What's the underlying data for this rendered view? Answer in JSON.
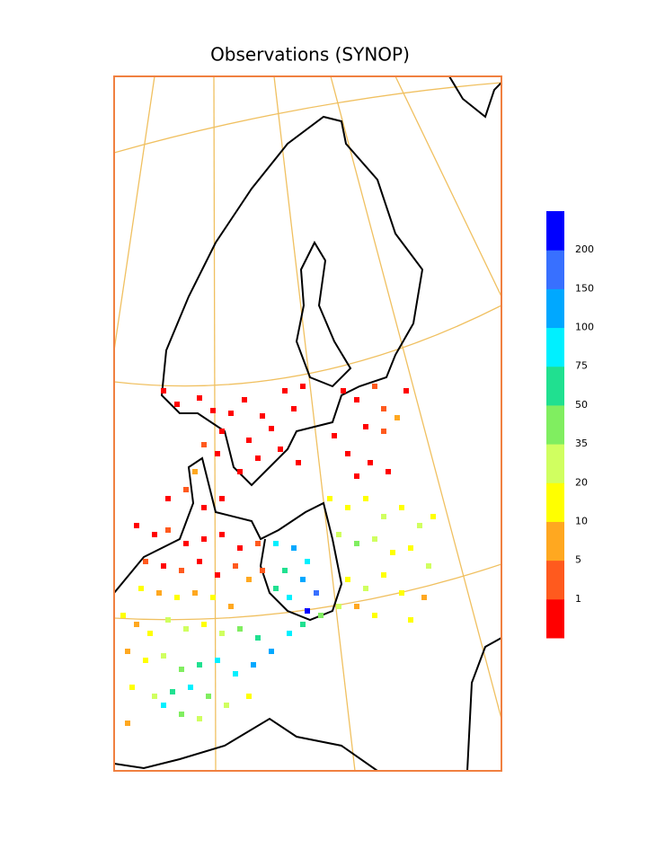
{
  "chart_data": {
    "type": "scatter",
    "title": "Observations (SYNOP)",
    "xlim": [
      0,
      431
    ],
    "ylim": [
      773,
      0
    ],
    "colorbar": {
      "levels": [
        1,
        5,
        10,
        20,
        35,
        50,
        75,
        100,
        150,
        200
      ],
      "colors": [
        "#ff0000",
        "#ff5a1e",
        "#ffa820",
        "#ffff00",
        "#d0ff60",
        "#80ee60",
        "#20e090",
        "#00f0ff",
        "#00a8ff",
        "#3870ff",
        "#0000ff"
      ]
    },
    "points": [
      [
        55,
        350,
        0.5
      ],
      [
        70,
        365,
        0.5
      ],
      [
        95,
        358,
        0.5
      ],
      [
        110,
        372,
        0.5
      ],
      [
        130,
        375,
        0.5
      ],
      [
        145,
        360,
        0.5
      ],
      [
        165,
        378,
        0.5
      ],
      [
        120,
        395,
        0.5
      ],
      [
        150,
        405,
        0.5
      ],
      [
        175,
        392,
        0.5
      ],
      [
        190,
        350,
        0.5
      ],
      [
        210,
        345,
        0.5
      ],
      [
        200,
        370,
        0.5
      ],
      [
        185,
        415,
        0.5
      ],
      [
        160,
        425,
        0.5
      ],
      [
        205,
        430,
        0.5
      ],
      [
        140,
        440,
        0.5
      ],
      [
        115,
        420,
        0.5
      ],
      [
        90,
        440,
        0.5
      ],
      [
        100,
        410,
        3
      ],
      [
        255,
        350,
        0.5
      ],
      [
        270,
        360,
        0.5
      ],
      [
        290,
        345,
        3
      ],
      [
        300,
        370,
        3
      ],
      [
        315,
        380,
        7
      ],
      [
        280,
        390,
        0.5
      ],
      [
        300,
        395,
        3
      ],
      [
        260,
        420,
        0.5
      ],
      [
        285,
        430,
        0.5
      ],
      [
        305,
        440,
        0.5
      ],
      [
        325,
        350,
        0.5
      ],
      [
        245,
        400,
        0.5
      ],
      [
        270,
        445,
        0.5
      ],
      [
        240,
        470,
        12
      ],
      [
        260,
        480,
        15
      ],
      [
        280,
        470,
        12
      ],
      [
        300,
        490,
        25
      ],
      [
        320,
        480,
        15
      ],
      [
        340,
        500,
        25
      ],
      [
        355,
        490,
        12
      ],
      [
        250,
        510,
        25
      ],
      [
        270,
        520,
        40
      ],
      [
        290,
        515,
        25
      ],
      [
        310,
        530,
        12
      ],
      [
        330,
        525,
        15
      ],
      [
        350,
        545,
        25
      ],
      [
        260,
        560,
        12
      ],
      [
        280,
        570,
        25
      ],
      [
        300,
        555,
        15
      ],
      [
        320,
        575,
        12
      ],
      [
        345,
        580,
        7
      ],
      [
        290,
        600,
        12
      ],
      [
        330,
        605,
        15
      ],
      [
        270,
        590,
        7
      ],
      [
        180,
        520,
        85
      ],
      [
        200,
        525,
        120
      ],
      [
        215,
        540,
        85
      ],
      [
        190,
        550,
        60
      ],
      [
        210,
        560,
        120
      ],
      [
        225,
        575,
        170
      ],
      [
        195,
        580,
        85
      ],
      [
        180,
        570,
        60
      ],
      [
        215,
        595,
        250
      ],
      [
        25,
        500,
        0.5
      ],
      [
        45,
        510,
        0.5
      ],
      [
        60,
        505,
        3
      ],
      [
        80,
        520,
        0.5
      ],
      [
        100,
        515,
        0.5
      ],
      [
        120,
        510,
        0.5
      ],
      [
        140,
        525,
        0.5
      ],
      [
        160,
        520,
        3
      ],
      [
        35,
        540,
        3
      ],
      [
        55,
        545,
        0.5
      ],
      [
        75,
        550,
        3
      ],
      [
        95,
        540,
        0.5
      ],
      [
        115,
        555,
        0.5
      ],
      [
        135,
        545,
        3
      ],
      [
        150,
        560,
        7
      ],
      [
        165,
        550,
        3
      ],
      [
        30,
        570,
        12
      ],
      [
        50,
        575,
        7
      ],
      [
        70,
        580,
        12
      ],
      [
        90,
        575,
        7
      ],
      [
        110,
        580,
        12
      ],
      [
        130,
        590,
        7
      ],
      [
        60,
        470,
        0.5
      ],
      [
        80,
        460,
        3
      ],
      [
        100,
        480,
        0.5
      ],
      [
        120,
        470,
        0.5
      ],
      [
        90,
        440,
        7
      ],
      [
        10,
        600,
        12
      ],
      [
        25,
        610,
        7
      ],
      [
        40,
        620,
        12
      ],
      [
        60,
        605,
        25
      ],
      [
        80,
        615,
        25
      ],
      [
        100,
        610,
        12
      ],
      [
        120,
        620,
        25
      ],
      [
        140,
        615,
        40
      ],
      [
        160,
        625,
        60
      ],
      [
        15,
        640,
        7
      ],
      [
        35,
        650,
        12
      ],
      [
        55,
        645,
        25
      ],
      [
        75,
        660,
        40
      ],
      [
        95,
        655,
        60
      ],
      [
        115,
        650,
        85
      ],
      [
        135,
        665,
        85
      ],
      [
        155,
        655,
        120
      ],
      [
        175,
        640,
        120
      ],
      [
        195,
        620,
        85
      ],
      [
        210,
        610,
        60
      ],
      [
        230,
        600,
        40
      ],
      [
        250,
        590,
        25
      ],
      [
        20,
        680,
        12
      ],
      [
        45,
        690,
        25
      ],
      [
        65,
        685,
        60
      ],
      [
        85,
        680,
        85
      ],
      [
        105,
        690,
        40
      ],
      [
        125,
        700,
        25
      ],
      [
        150,
        690,
        12
      ],
      [
        75,
        710,
        40
      ],
      [
        95,
        715,
        25
      ],
      [
        55,
        700,
        85
      ],
      [
        15,
        720,
        7
      ]
    ]
  }
}
